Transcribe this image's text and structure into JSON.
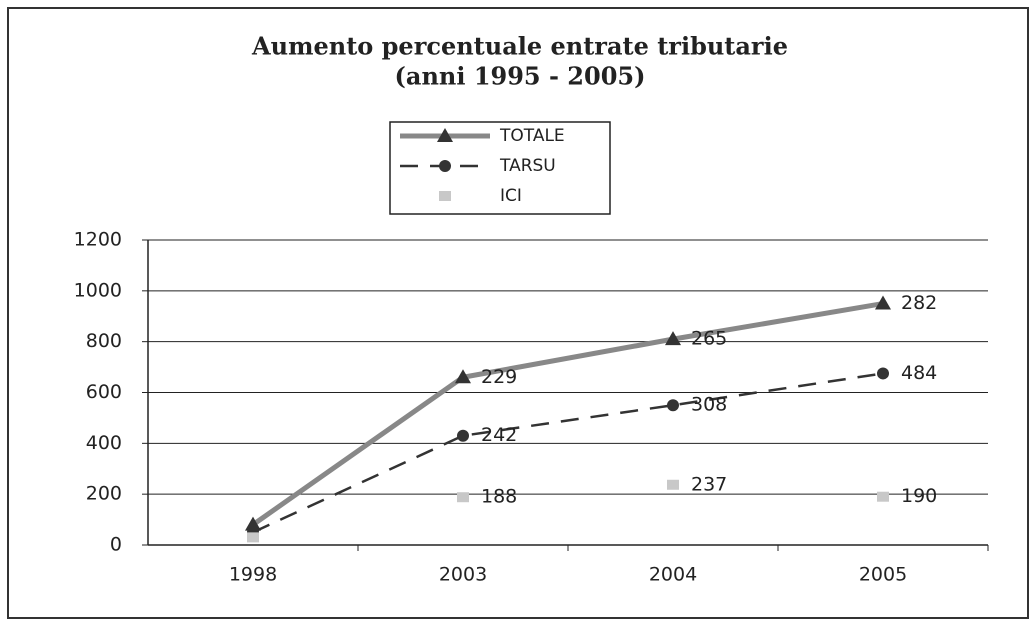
{
  "chart_data": {
    "type": "line",
    "title": "Aumento percentuale entrate tributarie",
    "subtitle": "(anni 1995 - 2005)",
    "categories": [
      "1998",
      "2003",
      "2004",
      "2005"
    ],
    "series": [
      {
        "name": "TOTALE",
        "color": "#888888",
        "line_style": "solid",
        "marker": "triangle",
        "values": [
          80,
          660,
          810,
          950
        ],
        "point_labels": [
          null,
          "229",
          "265",
          "282"
        ]
      },
      {
        "name": "TARSU",
        "color": "#333333",
        "line_style": "dashed",
        "marker": "circle",
        "values": [
          50,
          430,
          550,
          675
        ],
        "point_labels": [
          null,
          "242",
          "308",
          "484"
        ]
      },
      {
        "name": "ICI",
        "color": "#c8c8c8",
        "line_style": "none",
        "marker": "square",
        "values": [
          30,
          188,
          237,
          190
        ],
        "point_labels": [
          null,
          "188",
          "237",
          "190"
        ]
      }
    ],
    "ylim": [
      0,
      1200
    ],
    "yticks": [
      0,
      200,
      400,
      600,
      800,
      1000,
      1200
    ],
    "grid": true,
    "legend": "top"
  }
}
